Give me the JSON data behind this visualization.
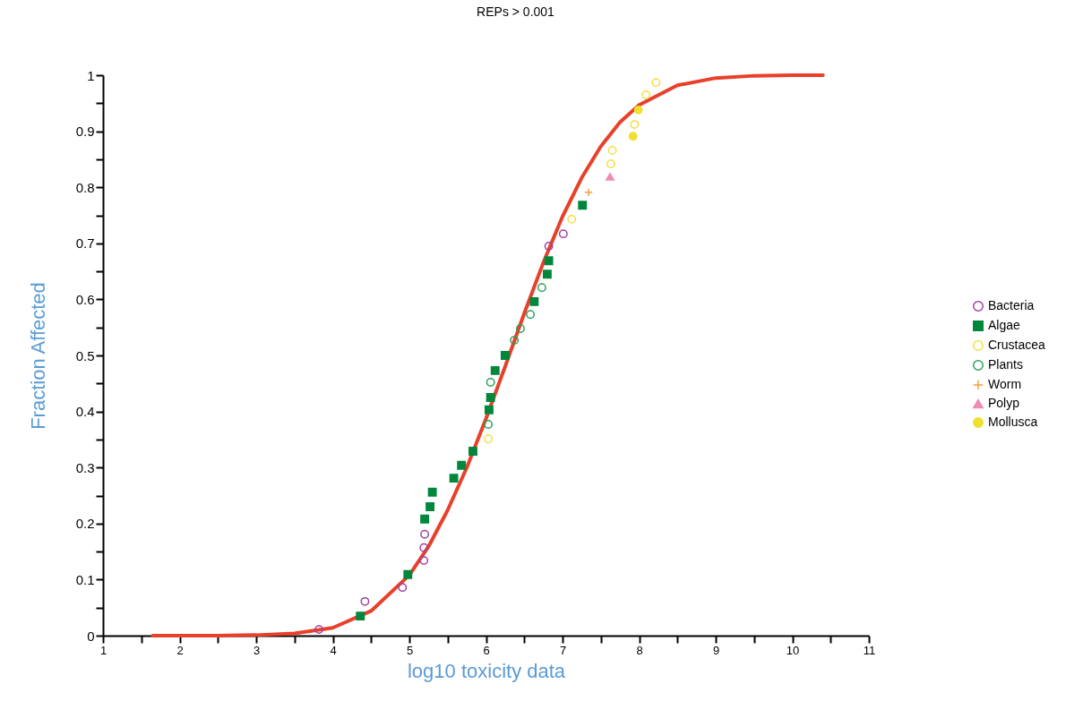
{
  "chart_data": {
    "type": "scatter",
    "title": "REPs > 0.001",
    "xlabel": "log10 toxicity data",
    "ylabel": "Fraction Affected",
    "xlim": [
      1,
      11
    ],
    "ylim": [
      0,
      1
    ],
    "xticks": [
      1,
      {
        "value": 1.5,
        "label": null
      },
      2,
      {
        "value": 2.5,
        "label": null
      },
      3,
      {
        "value": 3.5,
        "label": null
      },
      4,
      {
        "value": 4.5,
        "label": null
      },
      5,
      {
        "value": 5.5,
        "label": null
      },
      6,
      {
        "value": 6.5,
        "label": null
      },
      7,
      {
        "value": 7.5,
        "label": null
      },
      8,
      {
        "value": 8.5,
        "label": null
      },
      9,
      {
        "value": 9.5,
        "label": null
      },
      10,
      {
        "value": 10.5,
        "label": null
      },
      11
    ],
    "yticks": [
      0,
      {
        "value": 0.05,
        "label": null
      },
      0.1,
      {
        "value": 0.15,
        "label": null
      },
      0.2,
      {
        "value": 0.25,
        "label": null
      },
      0.3,
      {
        "value": 0.35,
        "label": null
      },
      0.4,
      {
        "value": 0.45,
        "label": null
      },
      0.5,
      {
        "value": 0.55,
        "label": null
      },
      0.6,
      {
        "value": 0.65,
        "label": null
      },
      0.7,
      {
        "value": 0.75,
        "label": null
      },
      0.8,
      {
        "value": 0.85,
        "label": null
      },
      0.9,
      {
        "value": 0.95,
        "label": null
      },
      1
    ],
    "grid": false,
    "legend": "right",
    "series": [
      {
        "type": "line",
        "color": "#e8402a",
        "marker": "none",
        "x": [
          1.65,
          2.5,
          3,
          3.5,
          4,
          4.5,
          5,
          5.25,
          5.5,
          5.75,
          6,
          6.25,
          6.5,
          6.75,
          7,
          7.25,
          7.5,
          7.75,
          8,
          8.5,
          9,
          9.5,
          10,
          10.4
        ],
        "values": [
          0,
          0,
          0.001,
          0.004,
          0.014,
          0.044,
          0.108,
          0.159,
          0.224,
          0.3,
          0.387,
          0.48,
          0.575,
          0.666,
          0.748,
          0.817,
          0.873,
          0.916,
          0.947,
          0.982,
          0.995,
          0.999,
          1,
          1
        ]
      },
      {
        "name": "Bacteria",
        "color": "#a040a0",
        "marker": "circle",
        "x": [
          3.82,
          4.42,
          4.91,
          5.19,
          5.19,
          5.2,
          6.82,
          7.01
        ],
        "values": [
          0.011,
          0.061,
          0.086,
          0.134,
          0.157,
          0.181,
          0.695,
          0.717
        ]
      },
      {
        "name": "Algae",
        "color": "#00873c",
        "marker": "square",
        "x": [
          4.36,
          4.98,
          5.2,
          5.27,
          5.3,
          5.58,
          5.68,
          5.83,
          6.04,
          6.06,
          6.12,
          6.25,
          6.63,
          6.8,
          6.82,
          7.26
        ],
        "values": [
          0.035,
          0.109,
          0.208,
          0.23,
          0.256,
          0.281,
          0.304,
          0.329,
          0.403,
          0.425,
          0.473,
          0.5,
          0.596,
          0.645,
          0.669,
          0.768
        ]
      },
      {
        "name": "Crustacea",
        "color": "#f0e040",
        "marker": "circle",
        "x": [
          6.03,
          7.12,
          7.63,
          7.65,
          7.94,
          8.09,
          8.22
        ],
        "values": [
          0.351,
          0.743,
          0.842,
          0.866,
          0.912,
          0.965,
          0.987
        ]
      },
      {
        "name": "Plants",
        "color": "#2ca05a",
        "marker": "circle",
        "x": [
          6.03,
          6.06,
          6.37,
          6.45,
          6.58,
          6.73
        ],
        "values": [
          0.377,
          0.452,
          0.527,
          0.548,
          0.573,
          0.621
        ]
      },
      {
        "name": "Worm",
        "color": "#f4a040",
        "marker": "cross",
        "x": [
          7.34
        ],
        "values": [
          0.791
        ]
      },
      {
        "name": "Polyp",
        "color": "#f08cb4",
        "marker": "triangle",
        "x": [
          7.62
        ],
        "values": [
          0.819
        ]
      },
      {
        "name": "Mollusca",
        "color": "#f0e030",
        "marker": "circle",
        "x": [
          7.92,
          7.99
        ],
        "values": [
          0.891,
          0.938
        ]
      }
    ]
  }
}
